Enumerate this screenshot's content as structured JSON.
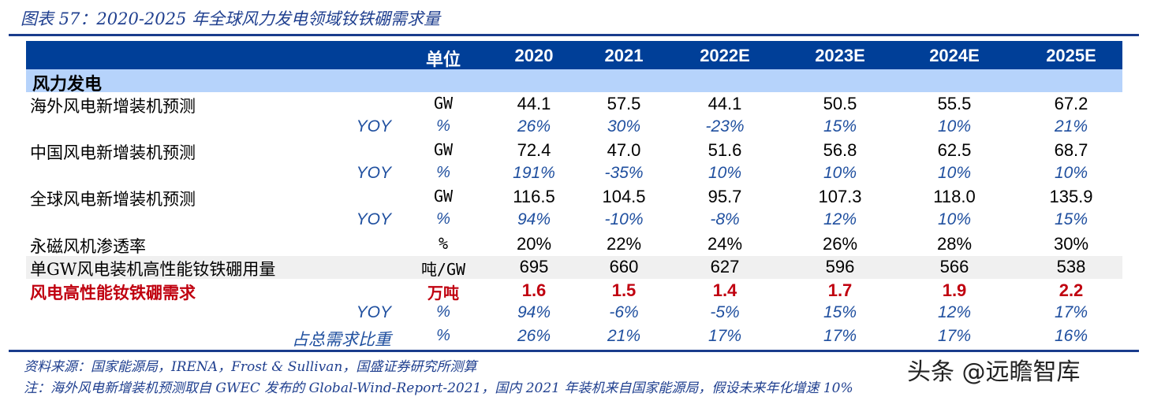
{
  "title": "图表 57：2020-2025 年全球风力发电领域钕铁硼需求量",
  "table": {
    "header": {
      "unit": "单位",
      "years": [
        "2020",
        "2021",
        "2022E",
        "2023E",
        "2024E",
        "2025E"
      ]
    },
    "section": "风力发电",
    "rows": [
      {
        "label": "海外风电新增装机预测",
        "unit": "GW",
        "values": [
          "44.1",
          "57.5",
          "44.1",
          "50.5",
          "55.5",
          "67.2"
        ],
        "style": "normal"
      },
      {
        "label": "YOY",
        "unit": "%",
        "values": [
          "26%",
          "30%",
          "-23%",
          "15%",
          "10%",
          "21%"
        ],
        "style": "yoy"
      },
      {
        "label": "中国风电新增装机预测",
        "unit": "GW",
        "values": [
          "72.4",
          "47.0",
          "51.6",
          "56.8",
          "62.5",
          "68.7"
        ],
        "style": "normal"
      },
      {
        "label": "YOY",
        "unit": "%",
        "values": [
          "191%",
          "-35%",
          "10%",
          "10%",
          "10%",
          "10%"
        ],
        "style": "yoy"
      },
      {
        "label": "全球风电新增装机预测",
        "unit": "GW",
        "values": [
          "116.5",
          "104.5",
          "95.7",
          "107.3",
          "118.0",
          "135.9"
        ],
        "style": "normal"
      },
      {
        "label": "YOY",
        "unit": "%",
        "values": [
          "94%",
          "-10%",
          "-8%",
          "12%",
          "10%",
          "15%"
        ],
        "style": "yoy"
      },
      {
        "label": "永磁风机渗透率",
        "unit": "%",
        "values": [
          "20%",
          "22%",
          "24%",
          "26%",
          "28%",
          "30%"
        ],
        "style": "normal"
      },
      {
        "label": "单GW风电装机高性能钕铁硼用量",
        "unit": "吨/GW",
        "values": [
          "695",
          "660",
          "627",
          "596",
          "566",
          "538"
        ],
        "style": "gray"
      },
      {
        "label": "风电高性能钕铁硼需求",
        "unit": "万吨",
        "values": [
          "1.6",
          "1.5",
          "1.4",
          "1.7",
          "1.9",
          "2.2"
        ],
        "style": "red"
      },
      {
        "label": "YOY",
        "unit": "%",
        "values": [
          "94%",
          "-6%",
          "-5%",
          "15%",
          "12%",
          "17%"
        ],
        "style": "yoy"
      },
      {
        "label": "占总需求比重",
        "unit": "%",
        "values": [
          "26%",
          "21%",
          "17%",
          "17%",
          "17%",
          "16%"
        ],
        "style": "share"
      }
    ]
  },
  "footer": {
    "source": "资料来源：国家能源局，IRENA，Frost & Sullivan，国盛证券研究所测算",
    "note": "注：海外风电新增装机预测取自 GWEC 发布的 Global-Wind-Report-2021，国内 2021 年装机来自国家能源局，假设未来年化增速 10%"
  },
  "watermark": "头条 @远瞻智库",
  "colors": {
    "header_bg": "#003f98",
    "section_bg": "#b6d3fb",
    "rule": "#1a3c8c",
    "yoy_text": "#1f4f9f",
    "highlight_red": "#c0000f",
    "gray_row": "#f0f0f0"
  }
}
